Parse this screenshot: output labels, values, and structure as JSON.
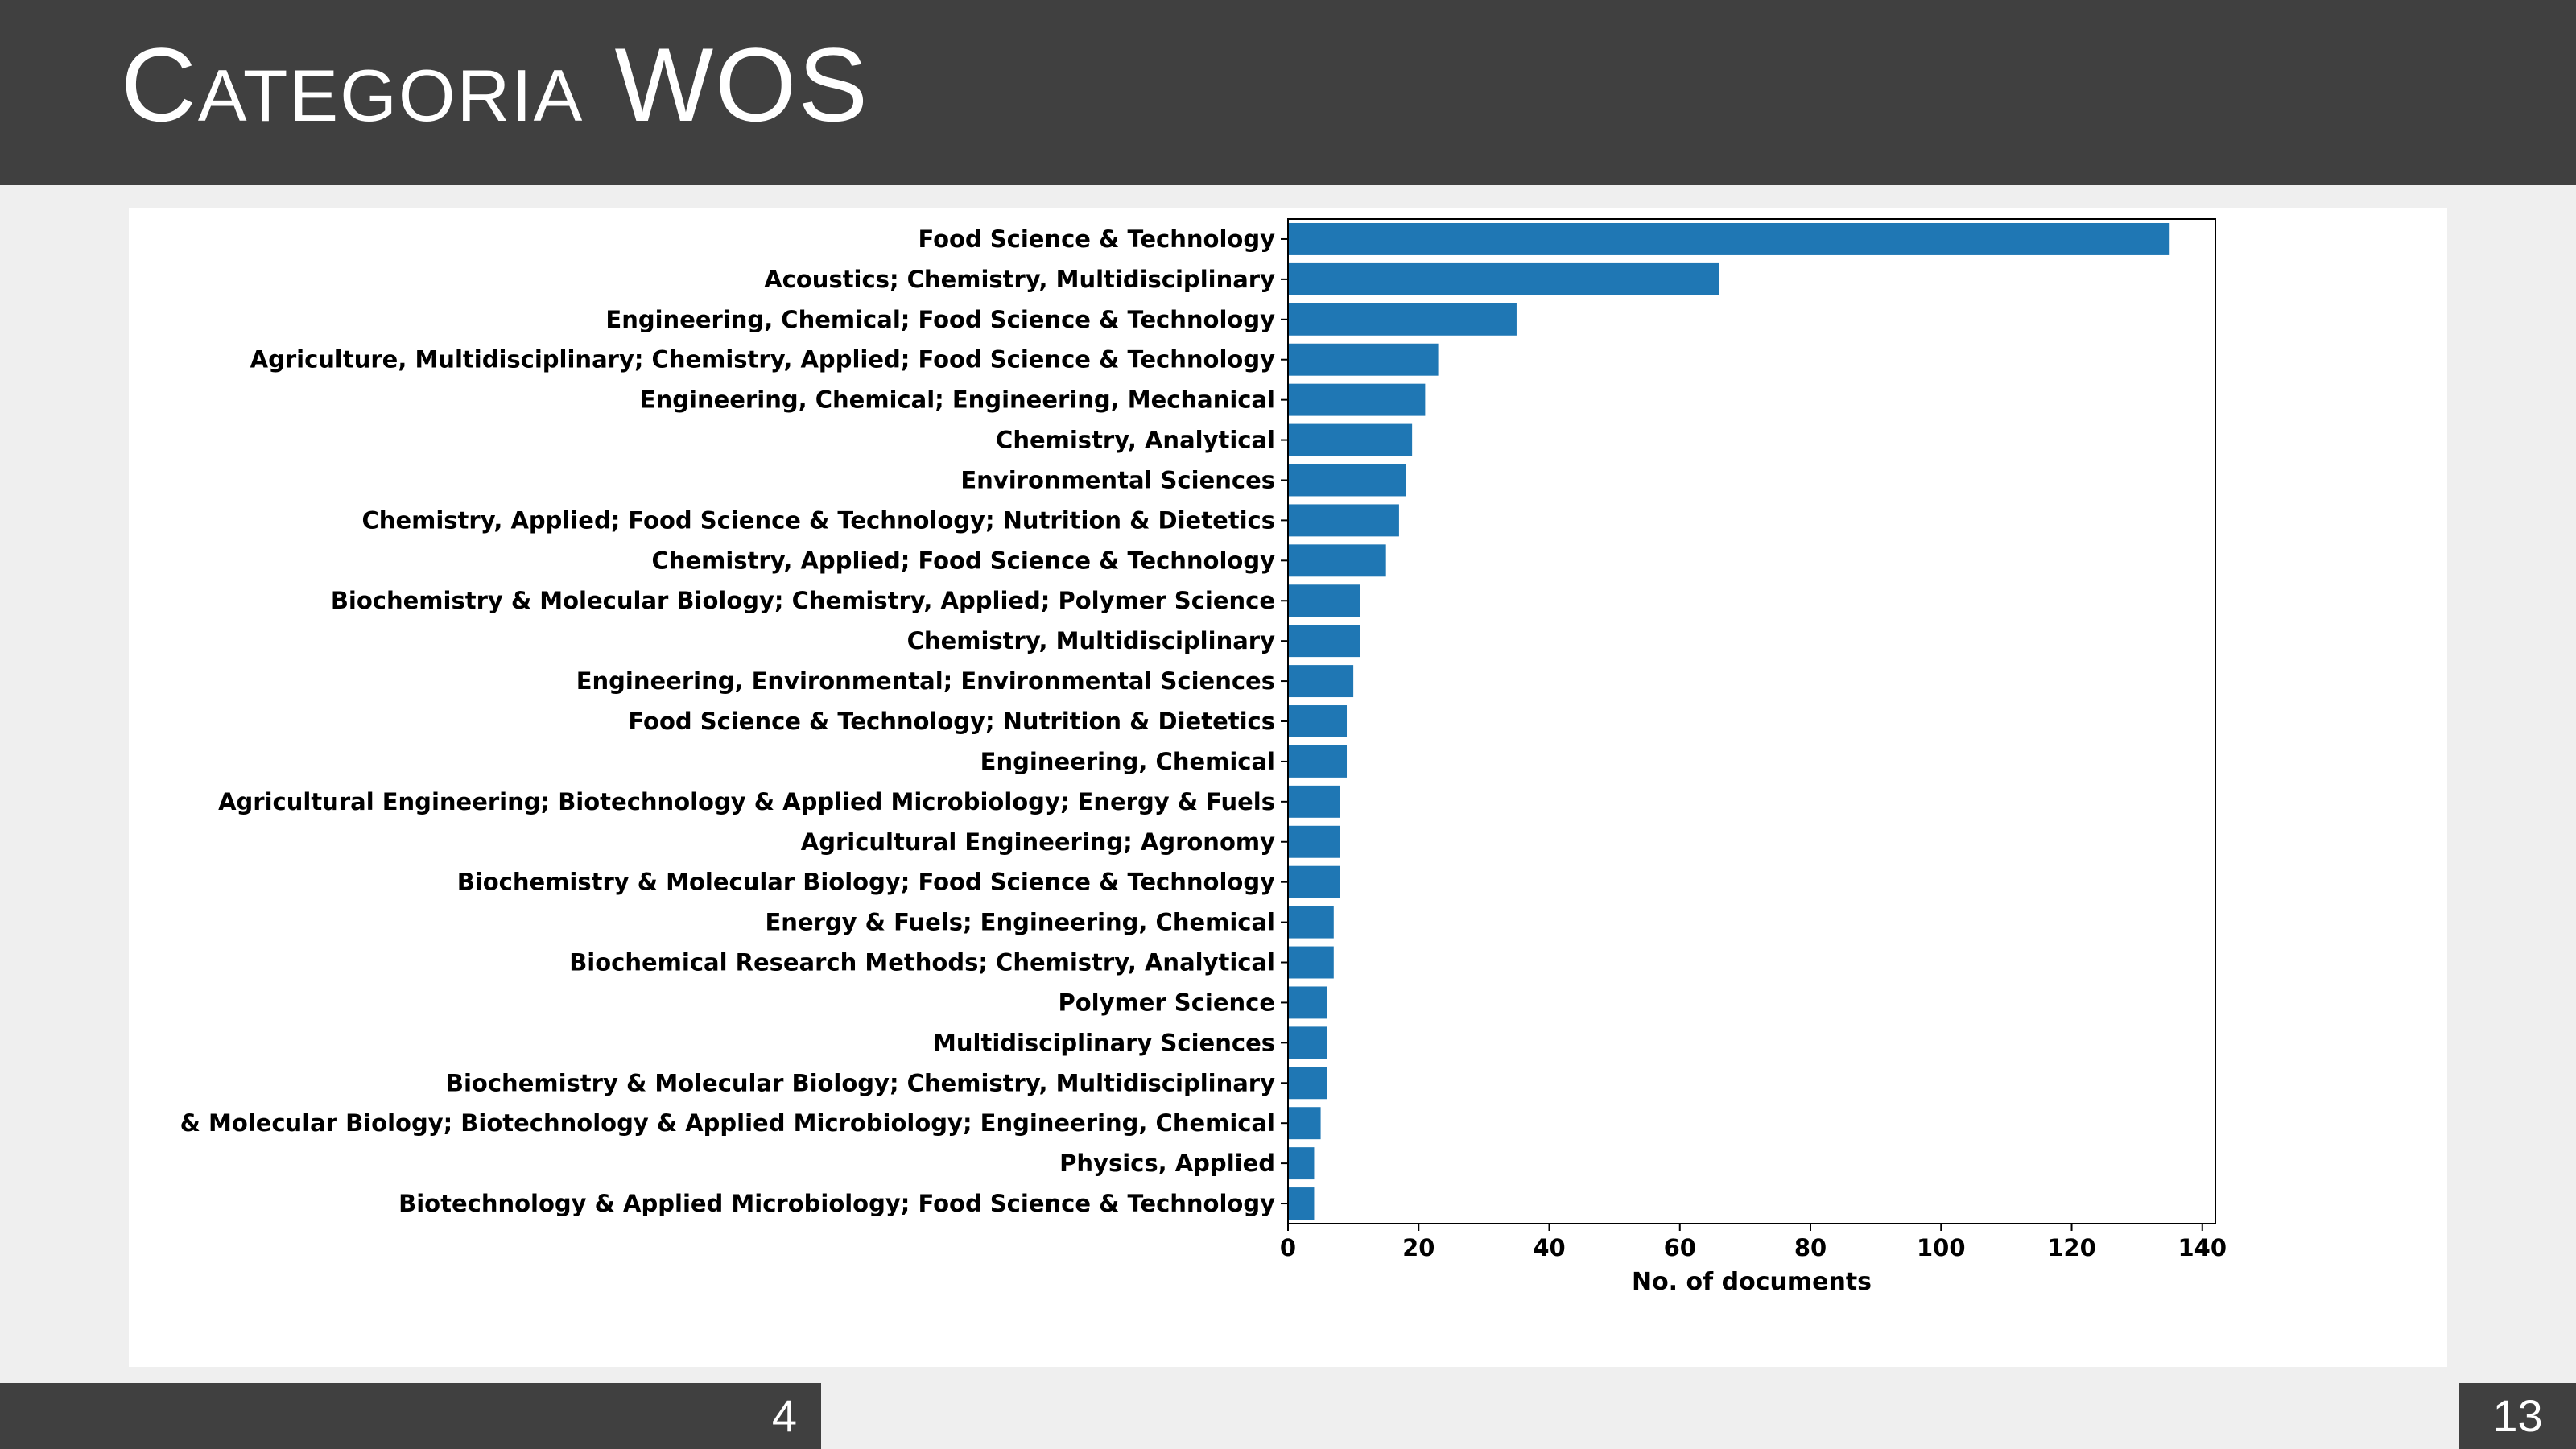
{
  "slide": {
    "title": "Categoria WOS",
    "section_number": "4",
    "page_number": "13"
  },
  "colors": {
    "bar": "#1f77b4",
    "header_background": "#404040",
    "page_background": "#efefef"
  },
  "chart_data": {
    "type": "bar",
    "orientation": "horizontal",
    "categories": [
      "Food Science & Technology",
      "Acoustics; Chemistry, Multidisciplinary",
      "Engineering, Chemical; Food Science & Technology",
      "Agriculture, Multidisciplinary; Chemistry, Applied; Food Science & Technology",
      "Engineering, Chemical; Engineering, Mechanical",
      "Chemistry, Analytical",
      "Environmental Sciences",
      "Chemistry, Applied; Food Science & Technology; Nutrition & Dietetics",
      "Chemistry, Applied; Food Science & Technology",
      "Biochemistry & Molecular Biology; Chemistry, Applied; Polymer Science",
      "Chemistry, Multidisciplinary",
      "Engineering, Environmental; Environmental Sciences",
      "Food Science & Technology; Nutrition & Dietetics",
      "Engineering, Chemical",
      "Agricultural Engineering; Biotechnology & Applied Microbiology; Energy & Fuels",
      "Agricultural Engineering; Agronomy",
      "Biochemistry & Molecular Biology; Food Science & Technology",
      "Energy & Fuels; Engineering, Chemical",
      "Biochemical Research Methods; Chemistry, Analytical",
      "Polymer Science",
      "Multidisciplinary Sciences",
      "Biochemistry & Molecular Biology; Chemistry, Multidisciplinary",
      "& Molecular Biology; Biotechnology & Applied Microbiology; Engineering, Chemical",
      "Physics, Applied",
      "Biotechnology & Applied Microbiology; Food Science & Technology"
    ],
    "values": [
      135,
      66,
      35,
      23,
      21,
      19,
      18,
      17,
      15,
      11,
      11,
      10,
      9,
      9,
      8,
      8,
      8,
      7,
      7,
      6,
      6,
      6,
      5,
      4,
      4
    ],
    "xlabel": "No. of documents",
    "ylabel": "",
    "xlim": [
      0,
      142
    ],
    "xticks": [
      0,
      20,
      40,
      60,
      80,
      100,
      120,
      140
    ],
    "grid": false
  }
}
